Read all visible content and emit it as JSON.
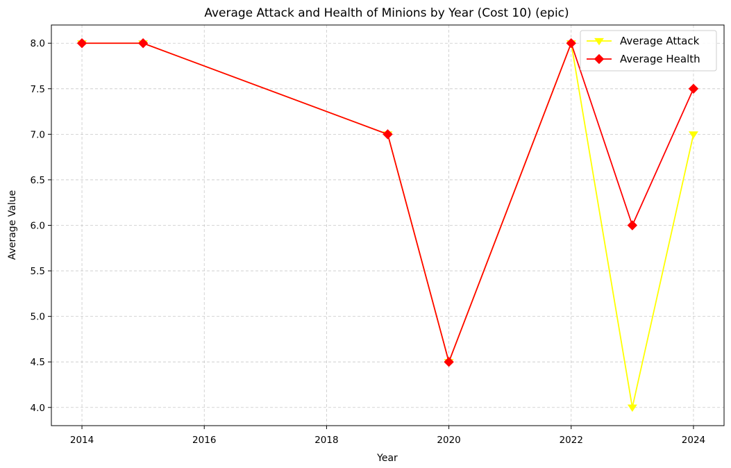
{
  "chart_data": {
    "type": "line",
    "title": "Average Attack and Health of Minions by Year (Cost 10) (epic)",
    "xlabel": "Year",
    "ylabel": "Average Value",
    "x": [
      2014,
      2015,
      2019,
      2020,
      2022,
      2023,
      2024
    ],
    "xlim": [
      2013.5,
      2024.5
    ],
    "ylim": [
      3.8,
      8.2
    ],
    "xticks": [
      2014,
      2016,
      2018,
      2020,
      2022,
      2024
    ],
    "yticks": [
      4.0,
      4.5,
      5.0,
      5.5,
      6.0,
      6.5,
      7.0,
      7.5,
      8.0
    ],
    "grid": true,
    "legend_position": "top-right",
    "series": [
      {
        "name": "Average Attack",
        "color": "#ffff00",
        "marker": "triangle-down",
        "values": [
          8.0,
          8.0,
          7.0,
          4.5,
          8.0,
          4.0,
          7.0
        ]
      },
      {
        "name": "Average Health",
        "color": "#ff0000",
        "marker": "diamond",
        "values": [
          8.0,
          8.0,
          7.0,
          4.5,
          8.0,
          6.0,
          7.5
        ]
      }
    ]
  }
}
